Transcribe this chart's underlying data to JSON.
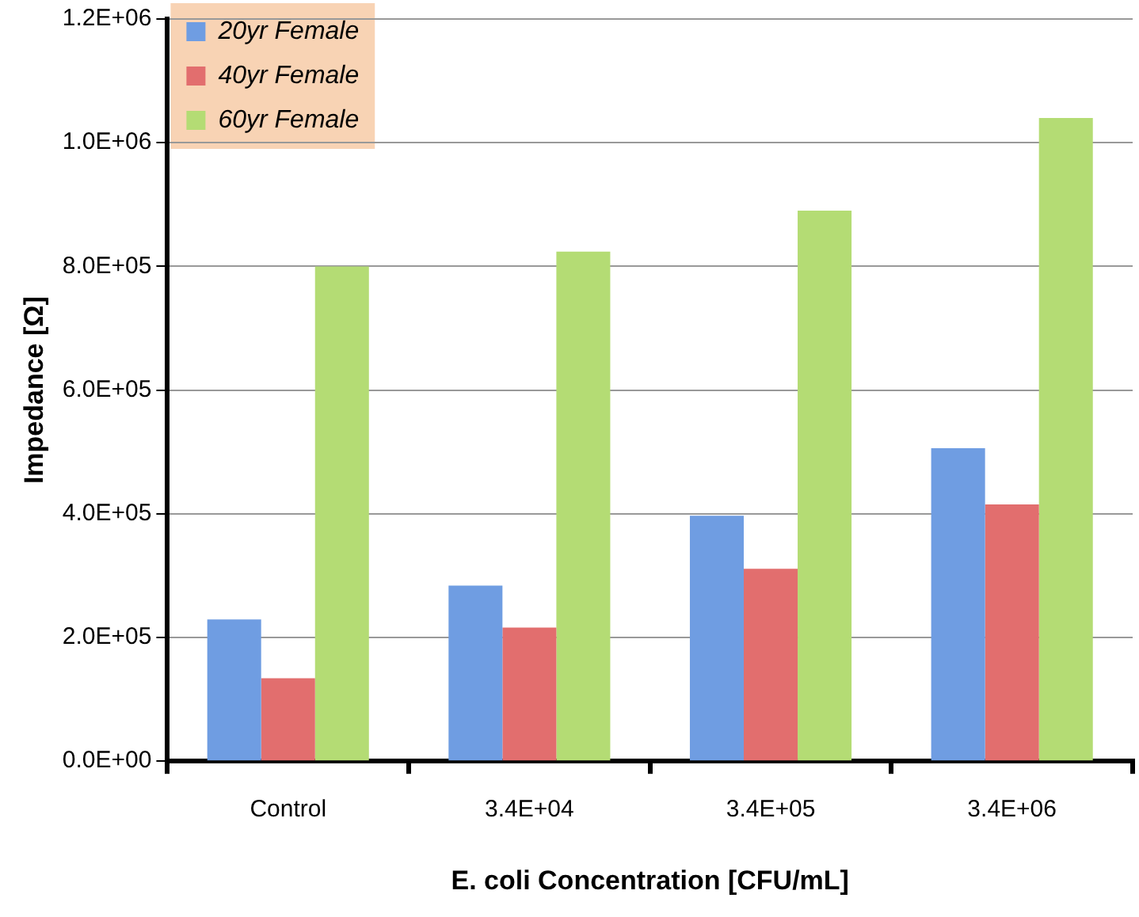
{
  "chart_data": {
    "type": "bar",
    "xlabel": "E. coli Concentration [CFU/mL]",
    "ylabel": "Impedance [Ω]",
    "categories": [
      "Control",
      "3.4E+04",
      "3.4E+05",
      "3.4E+06"
    ],
    "series": [
      {
        "name": "20yr Female",
        "color": "#6f9de2",
        "values": [
          229000,
          284000,
          397000,
          506000
        ]
      },
      {
        "name": "40yr Female",
        "color": "#e26e6e",
        "values": [
          134000,
          216000,
          311000,
          415000
        ]
      },
      {
        "name": "60yr Female",
        "color": "#b4dc74",
        "values": [
          800000,
          824000,
          890000,
          1040000
        ]
      }
    ],
    "ylim": [
      0,
      1200000
    ],
    "yticks": [
      {
        "value": 0,
        "label": "0.0E+00"
      },
      {
        "value": 200000,
        "label": "2.0E+05"
      },
      {
        "value": 400000,
        "label": "4.0E+05"
      },
      {
        "value": 600000,
        "label": "6.0E+05"
      },
      {
        "value": 800000,
        "label": "8.0E+05"
      },
      {
        "value": 1000000,
        "label": "1.0E+06"
      },
      {
        "value": 1200000,
        "label": "1.2E+06"
      }
    ],
    "grid": "y",
    "legend": "top left"
  }
}
